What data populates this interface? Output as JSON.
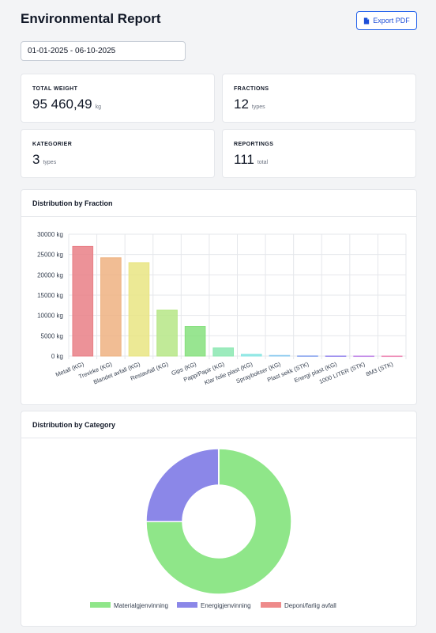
{
  "header": {
    "title": "Environmental Report",
    "export_label": "Export PDF"
  },
  "filters": {
    "date_range": "01-01-2025 - 06-10-2025"
  },
  "stats": [
    {
      "label": "TOTAL WEIGHT",
      "value": "95 460,49",
      "unit": "kg"
    },
    {
      "label": "FRACTIONS",
      "value": "12",
      "unit": "types"
    },
    {
      "label": "KATEGORIER",
      "value": "3",
      "unit": "types"
    },
    {
      "label": "REPORTINGS",
      "value": "111",
      "unit": "total"
    }
  ],
  "fraction_panel": {
    "title": "Distribution by Fraction"
  },
  "category_panel": {
    "title": "Distribution by Category"
  },
  "colors": {
    "accent": "#2563eb",
    "materialgjenvinning": "#8fe689",
    "energigjenvinning": "#8b87e8",
    "deponi": "#ee8a8a"
  },
  "chart_data": [
    {
      "type": "bar",
      "categories": [
        "Metall (KG)",
        "Trevirke (KG)",
        "Blandet avfall (KG)",
        "Restavfall (KG)",
        "Gips (KG)",
        "Papp/Papir (KG)",
        "Klar folie plast (KG)",
        "Spraybokser (KG)",
        "Plast sekk (STK)",
        "Energi plast (KG)",
        "1000 LITER (STK)",
        "8M3 (STK)"
      ],
      "values": [
        27000,
        24200,
        23000,
        11300,
        7300,
        2000,
        450,
        150,
        40,
        20,
        10,
        5
      ],
      "colors": [
        "#e97f86",
        "#eeb281",
        "#e9e583",
        "#b6e686",
        "#86e07e",
        "#8be8b2",
        "#8ae6e3",
        "#88c9ef",
        "#8aa6ee",
        "#9c8eee",
        "#c28ae8",
        "#ed8bb6"
      ],
      "ylim": [
        0,
        30000
      ],
      "yticks": [
        "0 kg",
        "5000 kg",
        "10000 kg",
        "15000 kg",
        "20000 kg",
        "25000 kg",
        "30000 kg"
      ],
      "grid": true
    },
    {
      "type": "pie",
      "donut": true,
      "categories": [
        "Materialgjenvinning",
        "Energigjenvinning",
        "Deponi/farlig avfall"
      ],
      "values": [
        75,
        25,
        0.05
      ],
      "colors": [
        "#8fe689",
        "#8b87e8",
        "#ee8a8a"
      ],
      "legend": "bottom"
    }
  ]
}
